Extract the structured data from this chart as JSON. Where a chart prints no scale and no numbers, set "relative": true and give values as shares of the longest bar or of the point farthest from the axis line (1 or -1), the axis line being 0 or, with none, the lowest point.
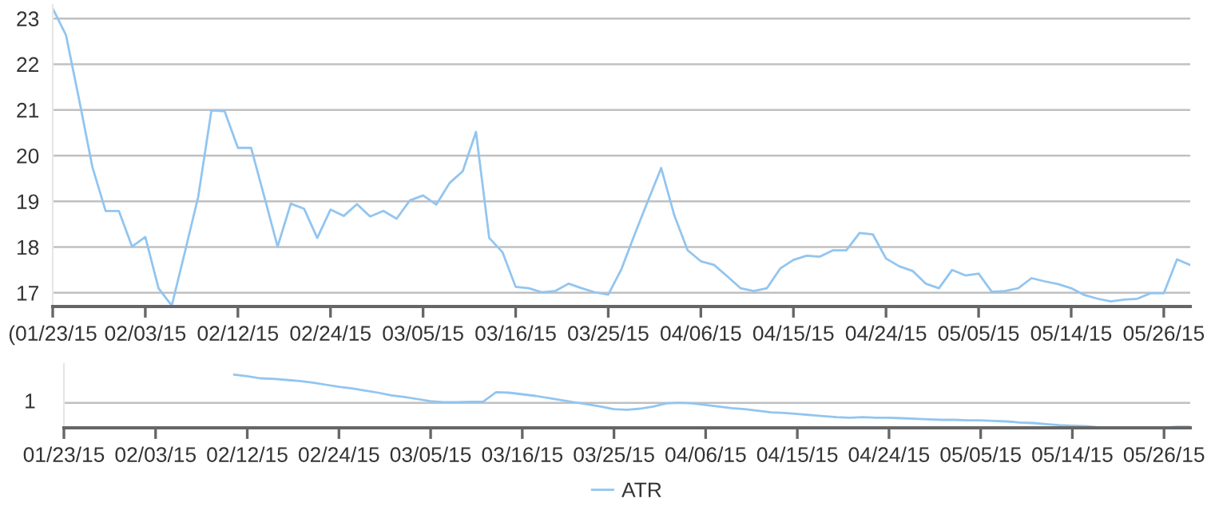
{
  "chart_data": [
    {
      "type": "line",
      "categories": [
        "(01/23/15",
        null,
        null,
        null,
        null,
        null,
        null,
        "02/03/15",
        null,
        null,
        null,
        null,
        null,
        null,
        "02/12/15",
        null,
        null,
        null,
        null,
        null,
        null,
        "02/24/15",
        null,
        null,
        null,
        null,
        null,
        null,
        "03/05/15",
        null,
        null,
        null,
        null,
        null,
        null,
        "03/16/15",
        null,
        null,
        null,
        null,
        null,
        null,
        "03/25/15",
        null,
        null,
        null,
        null,
        null,
        null,
        "04/06/15",
        null,
        null,
        null,
        null,
        null,
        null,
        "04/15/15",
        null,
        null,
        null,
        null,
        null,
        null,
        "04/24/15",
        null,
        null,
        null,
        null,
        null,
        null,
        "05/05/15",
        null,
        null,
        null,
        null,
        null,
        null,
        "05/14/15",
        null,
        null,
        null,
        null,
        null,
        null,
        "05/26/15",
        null,
        null
      ],
      "series": [
        {
          "color": "#92c5f0",
          "values": [
            23.22,
            22.64,
            21.22,
            19.75,
            18.79,
            18.79,
            18.01,
            18.22,
            17.1,
            16.72,
            17.9,
            19.1,
            20.99,
            20.97,
            20.17,
            20.17,
            19.1,
            18.01,
            18.95,
            18.84,
            18.2,
            18.82,
            18.68,
            18.94,
            18.67,
            18.79,
            18.62,
            19.02,
            19.13,
            18.93,
            19.4,
            19.66,
            20.52,
            18.2,
            17.89,
            17.13,
            17.1,
            17.01,
            17.04,
            17.2,
            17.1,
            17.01,
            16.96,
            17.52,
            18.28,
            19.01,
            19.73,
            18.69,
            17.93,
            17.69,
            17.61,
            17.36,
            17.1,
            17.04,
            17.1,
            17.53,
            17.72,
            17.81,
            17.79,
            17.93,
            17.93,
            18.31,
            18.28,
            17.75,
            17.58,
            17.48,
            17.2,
            17.1,
            17.5,
            17.38,
            17.42,
            17.02,
            17.04,
            17.1,
            17.32,
            17.25,
            17.19,
            17.1,
            16.95,
            16.87,
            16.81,
            16.85,
            16.87,
            16.99,
            16.99,
            17.73,
            17.61
          ]
        }
      ],
      "ylim": [
        16.7,
        23.3
      ],
      "yticks": [
        17,
        18,
        19,
        20,
        21,
        22,
        23
      ],
      "grid": "y",
      "legend": false,
      "marker": "none",
      "line_style": "solid"
    },
    {
      "type": "line",
      "categories": [
        "01/23/15",
        null,
        null,
        null,
        null,
        null,
        null,
        "02/03/15",
        null,
        null,
        null,
        null,
        null,
        null,
        "02/12/15",
        null,
        null,
        null,
        null,
        null,
        null,
        "02/24/15",
        null,
        null,
        null,
        null,
        null,
        null,
        "03/05/15",
        null,
        null,
        null,
        null,
        null,
        null,
        "03/16/15",
        null,
        null,
        null,
        null,
        null,
        null,
        "03/25/15",
        null,
        null,
        null,
        null,
        null,
        null,
        "04/06/15",
        null,
        null,
        null,
        null,
        null,
        null,
        "04/15/15",
        null,
        null,
        null,
        null,
        null,
        null,
        "04/24/15",
        null,
        null,
        null,
        null,
        null,
        null,
        "05/05/15",
        null,
        null,
        null,
        null,
        null,
        null,
        "05/14/15",
        null,
        null,
        null,
        null,
        null,
        null,
        "05/26/15",
        null,
        null
      ],
      "series": [
        {
          "name": "ATR",
          "color": "#92c5f0",
          "values": [
            null,
            null,
            null,
            null,
            null,
            null,
            null,
            null,
            null,
            null,
            null,
            null,
            null,
            1.0,
            0.97,
            0.93,
            0.92,
            0.9,
            0.88,
            0.85,
            0.81,
            0.77,
            0.74,
            0.7,
            0.66,
            0.61,
            0.58,
            0.54,
            0.5,
            0.48,
            0.48,
            0.49,
            0.49,
            0.67,
            0.66,
            0.63,
            0.6,
            0.56,
            0.52,
            0.48,
            0.44,
            0.4,
            0.35,
            0.34,
            0.36,
            0.4,
            0.46,
            0.47,
            0.46,
            0.43,
            0.4,
            0.37,
            0.35,
            0.32,
            0.29,
            0.28,
            0.26,
            0.24,
            0.22,
            0.2,
            0.19,
            0.2,
            0.19,
            0.19,
            0.18,
            0.17,
            0.16,
            0.15,
            0.15,
            0.14,
            0.14,
            0.13,
            0.12,
            0.1,
            0.09,
            0.07,
            0.05,
            0.04,
            0.03,
            0.01,
            0.0,
            0.0,
            0.0,
            0.0,
            0.0,
            0.02,
            0.02
          ]
        }
      ],
      "relative": true,
      "ref_lines": [
        {
          "axis": "y",
          "value": 0.47,
          "color": "#c0c0c0"
        }
      ],
      "annotations": [
        "1"
      ],
      "grid": false,
      "legend": "bottom",
      "marker": "none",
      "line_style": "solid"
    }
  ]
}
